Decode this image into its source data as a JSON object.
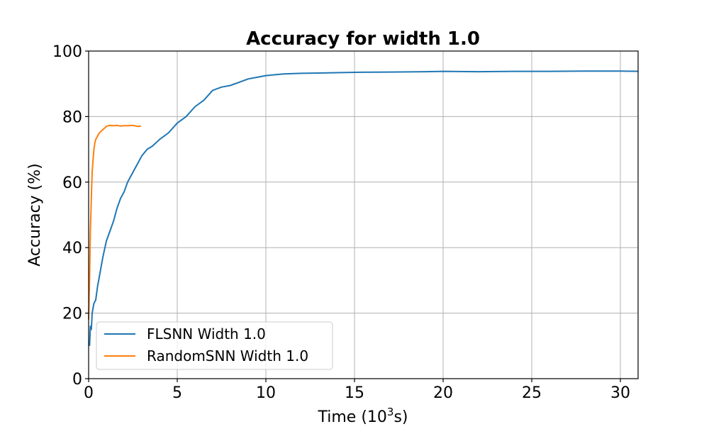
{
  "chart_data": {
    "type": "line",
    "title": "Accuracy for width 1.0",
    "xlabel_prefix": "Time (10",
    "xlabel_sup": "3",
    "xlabel_suffix": "s)",
    "ylabel": "Accuracy (%)",
    "xlim": [
      0,
      31
    ],
    "ylim": [
      0,
      100
    ],
    "xticks": [
      0,
      5,
      10,
      15,
      20,
      25,
      30
    ],
    "yticks": [
      0,
      20,
      40,
      60,
      80,
      100
    ],
    "grid": true,
    "legend_position": "lower-left",
    "series": [
      {
        "name": "FLSNN Width 1.0",
        "color": "#1f77b4",
        "x": [
          0.05,
          0.1,
          0.15,
          0.2,
          0.3,
          0.4,
          0.5,
          0.6,
          0.8,
          1.0,
          1.2,
          1.4,
          1.6,
          1.8,
          2.0,
          2.2,
          2.5,
          2.8,
          3.0,
          3.3,
          3.6,
          4.0,
          4.5,
          5.0,
          5.5,
          6.0,
          6.5,
          7.0,
          7.5,
          8.0,
          8.5,
          9.0,
          9.5,
          10.0,
          11.0,
          12.0,
          13.0,
          14.0,
          15.0,
          17.0,
          19.0,
          20.0,
          22.0,
          24.0,
          26.0,
          28.0,
          30.0,
          31.0
        ],
        "y": [
          10,
          16,
          15,
          20,
          23,
          24,
          28,
          31,
          37,
          42,
          45,
          48,
          52,
          55,
          57,
          60,
          63,
          66,
          68,
          70,
          71,
          73,
          75,
          78,
          80,
          83,
          85,
          88,
          89,
          89.5,
          90.5,
          91.5,
          92,
          92.5,
          93,
          93.2,
          93.3,
          93.4,
          93.5,
          93.6,
          93.7,
          93.8,
          93.7,
          93.8,
          93.8,
          93.9,
          93.9,
          93.8
        ]
      },
      {
        "name": "RandomSNN Width 1.0",
        "color": "#ff7f0e",
        "x": [
          0.0,
          0.05,
          0.1,
          0.15,
          0.2,
          0.25,
          0.3,
          0.35,
          0.4,
          0.5,
          0.6,
          0.7,
          0.8,
          0.9,
          1.0,
          1.1,
          1.2,
          1.4,
          1.6,
          1.8,
          2.0,
          2.2,
          2.5,
          2.8,
          2.95
        ],
        "y": [
          18,
          30,
          45,
          55,
          63,
          67,
          70,
          72,
          73,
          74,
          75,
          75.5,
          76,
          76.5,
          77,
          77.2,
          77.3,
          77.2,
          77.3,
          77.1,
          77.2,
          77.2,
          77.3,
          77.0,
          77.1
        ]
      }
    ]
  }
}
